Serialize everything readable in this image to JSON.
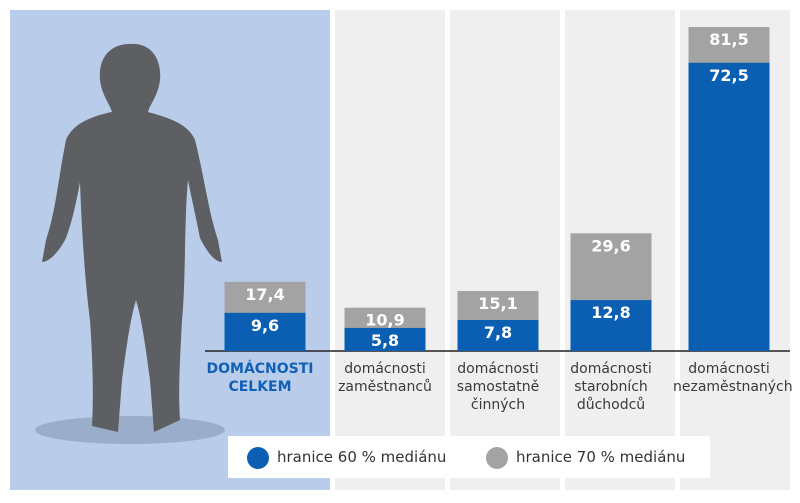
{
  "chart_data": {
    "type": "bar",
    "categories": [
      "DOMÁCNOSTI CELKEM",
      "domácnosti zaměstnanců",
      "domácnosti samostatně činných",
      "domácnosti starobních důchodců",
      "domácnosti nezaměstnaných"
    ],
    "series": [
      {
        "name": "hranice 60 % mediánu",
        "color": "#0b5fb3",
        "values": [
          9.6,
          5.8,
          7.8,
          12.8,
          72.5
        ],
        "value_labels": [
          "9,6",
          "5,8",
          "7,8",
          "12,8",
          "72,5"
        ]
      },
      {
        "name": "hranice 70 % mediánu",
        "color": "#a3a3a3",
        "values": [
          17.4,
          10.9,
          15.1,
          29.6,
          81.5
        ],
        "value_labels": [
          "17,4",
          "10,9",
          "15,1",
          "29,6",
          "81,5"
        ]
      }
    ],
    "ylim": [
      0,
      81.5
    ]
  }
}
